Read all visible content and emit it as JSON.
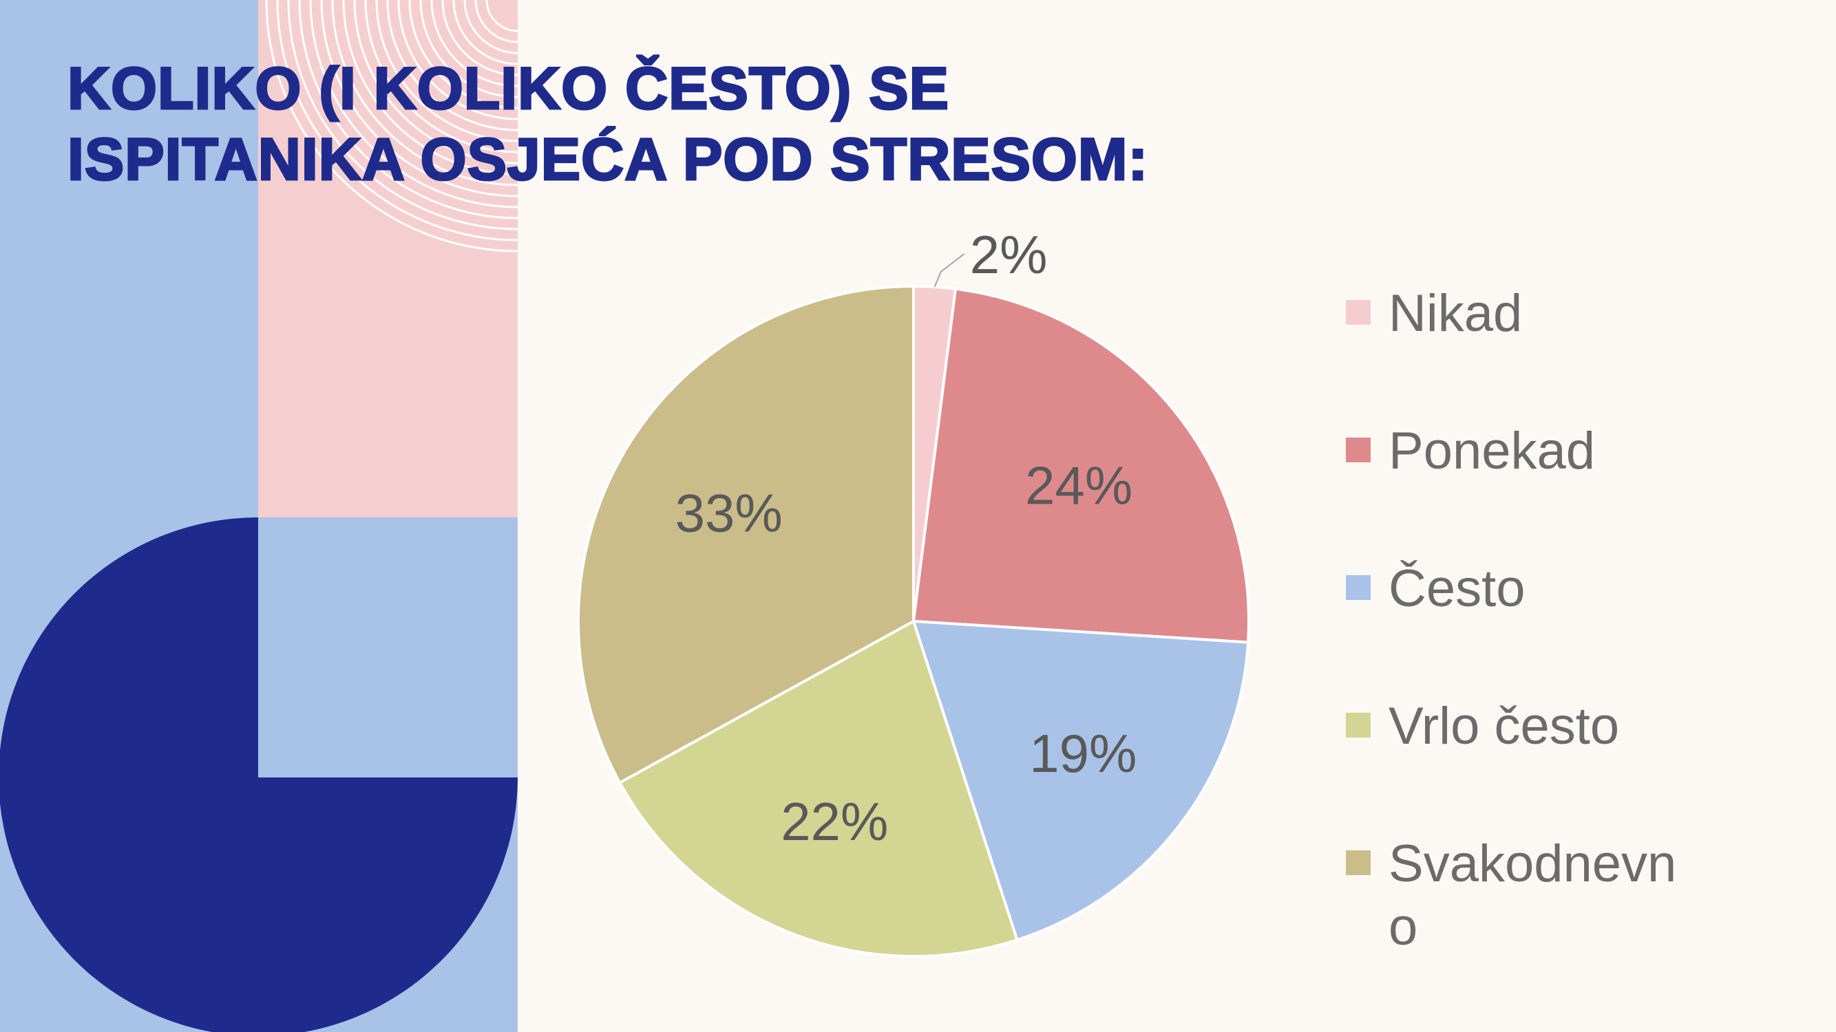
{
  "slide": {
    "title": "KOLIKO (I KOLIKO ČESTO) SE ISPITANIKA OSJEĆA POD STRESOM:"
  },
  "colors": {
    "background": "#fcf8f4",
    "deco_blue": "#a9c2e8",
    "deco_pink": "#f5cfcf",
    "deco_navy": "#1e2b8c",
    "title": "#1e2b8c"
  },
  "chart_data": {
    "type": "pie",
    "title": "",
    "slices": [
      {
        "name": "Nikad",
        "value": 2,
        "label": "2%",
        "color": "#f5cdd0"
      },
      {
        "name": "Ponekad",
        "value": 24,
        "label": "24%",
        "color": "#de8a8c"
      },
      {
        "name": "Često",
        "value": 19,
        "label": "19%",
        "color": "#a9c2e8"
      },
      {
        "name": "Vrlo često",
        "value": 22,
        "label": "22%",
        "color": "#d3d593"
      },
      {
        "name": "Svakodnevno",
        "value": 33,
        "label": "33%",
        "color": "#cabd89"
      }
    ],
    "legend_placement": "right",
    "start_angle": "top, clockwise"
  }
}
